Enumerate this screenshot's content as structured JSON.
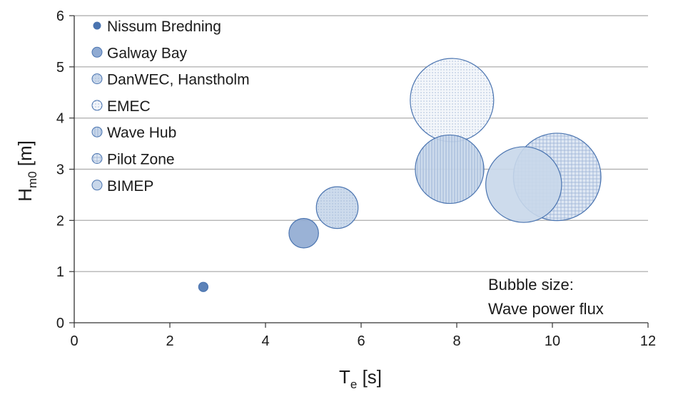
{
  "chart_data": {
    "type": "scatter",
    "variant": "bubble",
    "title": "",
    "xlabel": "T",
    "xlabel_sub": "e",
    "xlabel_unit": " [s]",
    "ylabel": "H",
    "ylabel_sub": "m0",
    "ylabel_unit": " [m]",
    "xlim": [
      0,
      12
    ],
    "ylim": [
      0,
      6
    ],
    "x_ticks": [
      "0",
      "2",
      "4",
      "6",
      "8",
      "10",
      "12"
    ],
    "y_ticks": [
      "0",
      "1",
      "2",
      "3",
      "4",
      "5",
      "6"
    ],
    "grid": "horizontal",
    "legend_position": "top-left",
    "note_lines": [
      "Bubble size:",
      "Wave power flux"
    ],
    "series": [
      {
        "name": "Nissum Bredning",
        "x": 2.7,
        "y": 0.7,
        "size": 0.5,
        "fill": "#4a74b0",
        "pattern": "solid"
      },
      {
        "name": "Galway Bay",
        "x": 4.8,
        "y": 1.75,
        "size": 5,
        "fill": "#8faad2",
        "pattern": "solid"
      },
      {
        "name": "DanWEC, Hanstholm",
        "x": 5.5,
        "y": 2.25,
        "size": 10,
        "fill": "#c8d7ea",
        "pattern": "dots"
      },
      {
        "name": "EMEC",
        "x": 7.9,
        "y": 4.35,
        "size": 40,
        "fill": "#f2f5fa",
        "pattern": "dots"
      },
      {
        "name": "Wave Hub",
        "x": 7.85,
        "y": 3.0,
        "size": 27,
        "fill": "#c8d7ea",
        "pattern": "vlines"
      },
      {
        "name": "Pilot Zone",
        "x": 10.1,
        "y": 2.85,
        "size": 44,
        "fill": "#dbe5f2",
        "pattern": "grid"
      },
      {
        "name": "BIMEP",
        "x": 9.4,
        "y": 2.7,
        "size": 33,
        "fill": "#c8d7ea",
        "pattern": "solid"
      }
    ]
  }
}
